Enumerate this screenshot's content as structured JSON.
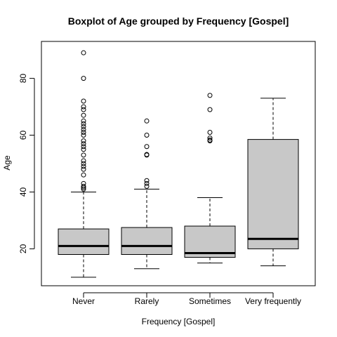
{
  "chart_data": {
    "type": "boxplot",
    "title": "Boxplot of Age grouped by Frequency [Gospel]",
    "xlabel": "Frequency [Gospel]",
    "ylabel": "Age",
    "ylim": [
      7,
      93
    ],
    "yticks": [
      20,
      40,
      60,
      80
    ],
    "grid": false,
    "box_color": "#c8c8c8",
    "categories": [
      "Never",
      "Rarely",
      "Sometimes",
      "Very frequently"
    ],
    "boxes": [
      {
        "category": "Never",
        "whisker_low": 10,
        "q1": 18,
        "median": 21,
        "q3": 27,
        "whisker_high": 40,
        "outliers": [
          41,
          41.5,
          42,
          43,
          46,
          48,
          49,
          50,
          51,
          53,
          55,
          56,
          57,
          58,
          60,
          61,
          62,
          63,
          64,
          65,
          67,
          69,
          70,
          72,
          80,
          89
        ]
      },
      {
        "category": "Rarely",
        "whisker_low": 13,
        "q1": 18,
        "median": 21,
        "q3": 27.5,
        "whisker_high": 41,
        "outliers": [
          42,
          43,
          44,
          53,
          53.2,
          56,
          60,
          65
        ]
      },
      {
        "category": "Sometimes",
        "whisker_low": 15,
        "q1": 17,
        "median": 18.5,
        "q3": 28,
        "whisker_high": 38,
        "outliers": [
          58,
          58.3,
          59,
          61,
          69,
          74
        ]
      },
      {
        "category": "Very frequently",
        "whisker_low": 14,
        "q1": 20,
        "median": 23.5,
        "q3": 58.5,
        "whisker_high": 73,
        "outliers": []
      }
    ]
  }
}
